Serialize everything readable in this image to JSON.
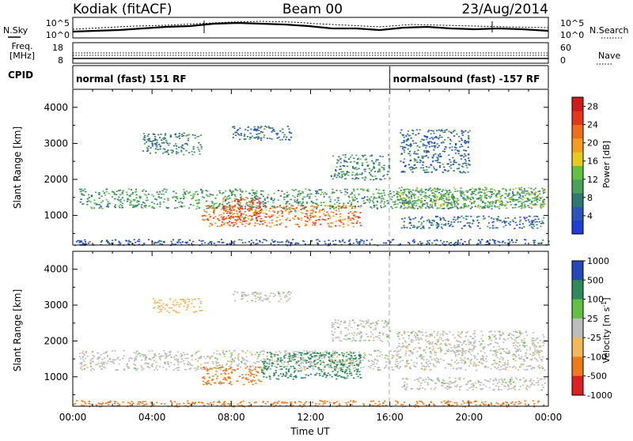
{
  "header": {
    "radar": "Kodiak (fitACF)",
    "beam": "Beam 00",
    "date": "23/Aug/2014"
  },
  "summary": {
    "nsky": {
      "label": "N.Sky",
      "ticks": [
        "10^5",
        "10^0"
      ],
      "right_label": "N.Search",
      "right_ticks": [
        "10^5",
        "10^0"
      ]
    },
    "freq": {
      "label_line1": "Freq.",
      "label_line2": "[MHz]",
      "ticks": [
        "18",
        "8"
      ],
      "right_label": "Nave",
      "right_ticks": [
        "60",
        "0"
      ]
    },
    "cpid": {
      "label": "CPID",
      "segments": [
        {
          "text": "normal (fast) 151 RF",
          "start_hour": 0
        },
        {
          "text": "normalsound (fast) -157 RF",
          "start_hour": 16
        }
      ]
    }
  },
  "colors": {
    "power": [
      "#1f3fd8",
      "#2a56b8",
      "#2e7a73",
      "#49a25a",
      "#62c043",
      "#e8c91e",
      "#f59d1e",
      "#ee6f1a",
      "#e5361b",
      "#d11a1a"
    ],
    "velocity": {
      "neg_fast": "#e02020",
      "neg_med": "#ee7a1a",
      "neg_slow": "#f2b85a",
      "ground": "#bdbdbd",
      "pos_slow": "#62c043",
      "pos_med": "#2e8a5a",
      "pos_fast": "#2448b8"
    }
  },
  "chart_data": [
    {
      "type": "heatmap",
      "title": "",
      "xlabel": "",
      "ylabel": "Slant Range [km]",
      "x_unit": "hour UT",
      "xlim": [
        0,
        24
      ],
      "ylim": [
        180,
        4500
      ],
      "y_ticks": [
        "1000",
        "2000",
        "3000",
        "4000"
      ],
      "colorbar": {
        "label": "Power [dB]",
        "range": [
          0,
          30
        ],
        "ticks": [
          "4",
          "8",
          "12",
          "16",
          "20",
          "24",
          "28"
        ]
      },
      "regions": [
        {
          "x": [
            0.3,
            23.8
          ],
          "y": [
            1200,
            1750
          ],
          "value": 10
        },
        {
          "x": [
            6.5,
            14.5
          ],
          "y": [
            700,
            1300
          ],
          "value": 22
        },
        {
          "x": [
            7.5,
            9.5
          ],
          "y": [
            800,
            1500
          ],
          "value": 24
        },
        {
          "x": [
            16.3,
            23.8
          ],
          "y": [
            1200,
            1800
          ],
          "value": 12
        },
        {
          "x": [
            16.5,
            23.8
          ],
          "y": [
            650,
            1000
          ],
          "value": 6
        },
        {
          "x": [
            3.5,
            6.5
          ],
          "y": [
            2700,
            3300
          ],
          "value": 8
        },
        {
          "x": [
            8.0,
            11.0
          ],
          "y": [
            3100,
            3500
          ],
          "value": 6
        },
        {
          "x": [
            13.0,
            16.0
          ],
          "y": [
            2000,
            2700
          ],
          "value": 8
        },
        {
          "x": [
            16.5,
            20.0
          ],
          "y": [
            2200,
            3400
          ],
          "value": 6
        },
        {
          "x": [
            0.0,
            24.0
          ],
          "y": [
            180,
            350
          ],
          "value": 4
        }
      ]
    },
    {
      "type": "heatmap",
      "title": "",
      "xlabel": "Time UT",
      "ylabel": "Slant Range [km]",
      "x_unit": "hour UT",
      "xlim": [
        0,
        24
      ],
      "ylim": [
        180,
        4500
      ],
      "x_ticks": [
        "00:00",
        "04:00",
        "08:00",
        "12:00",
        "16:00",
        "20:00",
        "00:00"
      ],
      "y_ticks": [
        "1000",
        "2000",
        "3000",
        "4000"
      ],
      "colorbar": {
        "label": "Velocity [m s^-1]",
        "ticks": [
          "1000",
          "500",
          "100",
          "25",
          "-25",
          "-100",
          "-500",
          "-1000"
        ]
      },
      "regions": [
        {
          "x": [
            0.3,
            23.8
          ],
          "y": [
            1200,
            1750
          ],
          "value": 0
        },
        {
          "x": [
            6.5,
            9.5
          ],
          "y": [
            800,
            1300
          ],
          "value": -300
        },
        {
          "x": [
            9.5,
            14.5
          ],
          "y": [
            950,
            1700
          ],
          "value": 150
        },
        {
          "x": [
            16.3,
            23.8
          ],
          "y": [
            1700,
            2300
          ],
          "value": 0
        },
        {
          "x": [
            16.5,
            23.8
          ],
          "y": [
            650,
            1000
          ],
          "value": 0
        },
        {
          "x": [
            4.0,
            6.5
          ],
          "y": [
            2800,
            3200
          ],
          "value": -50
        },
        {
          "x": [
            8.0,
            11.0
          ],
          "y": [
            3100,
            3400
          ],
          "value": 0
        },
        {
          "x": [
            13.0,
            16.0
          ],
          "y": [
            2000,
            2600
          ],
          "value": 0
        },
        {
          "x": [
            0.0,
            24.0
          ],
          "y": [
            180,
            350
          ],
          "value": -200
        }
      ]
    }
  ]
}
